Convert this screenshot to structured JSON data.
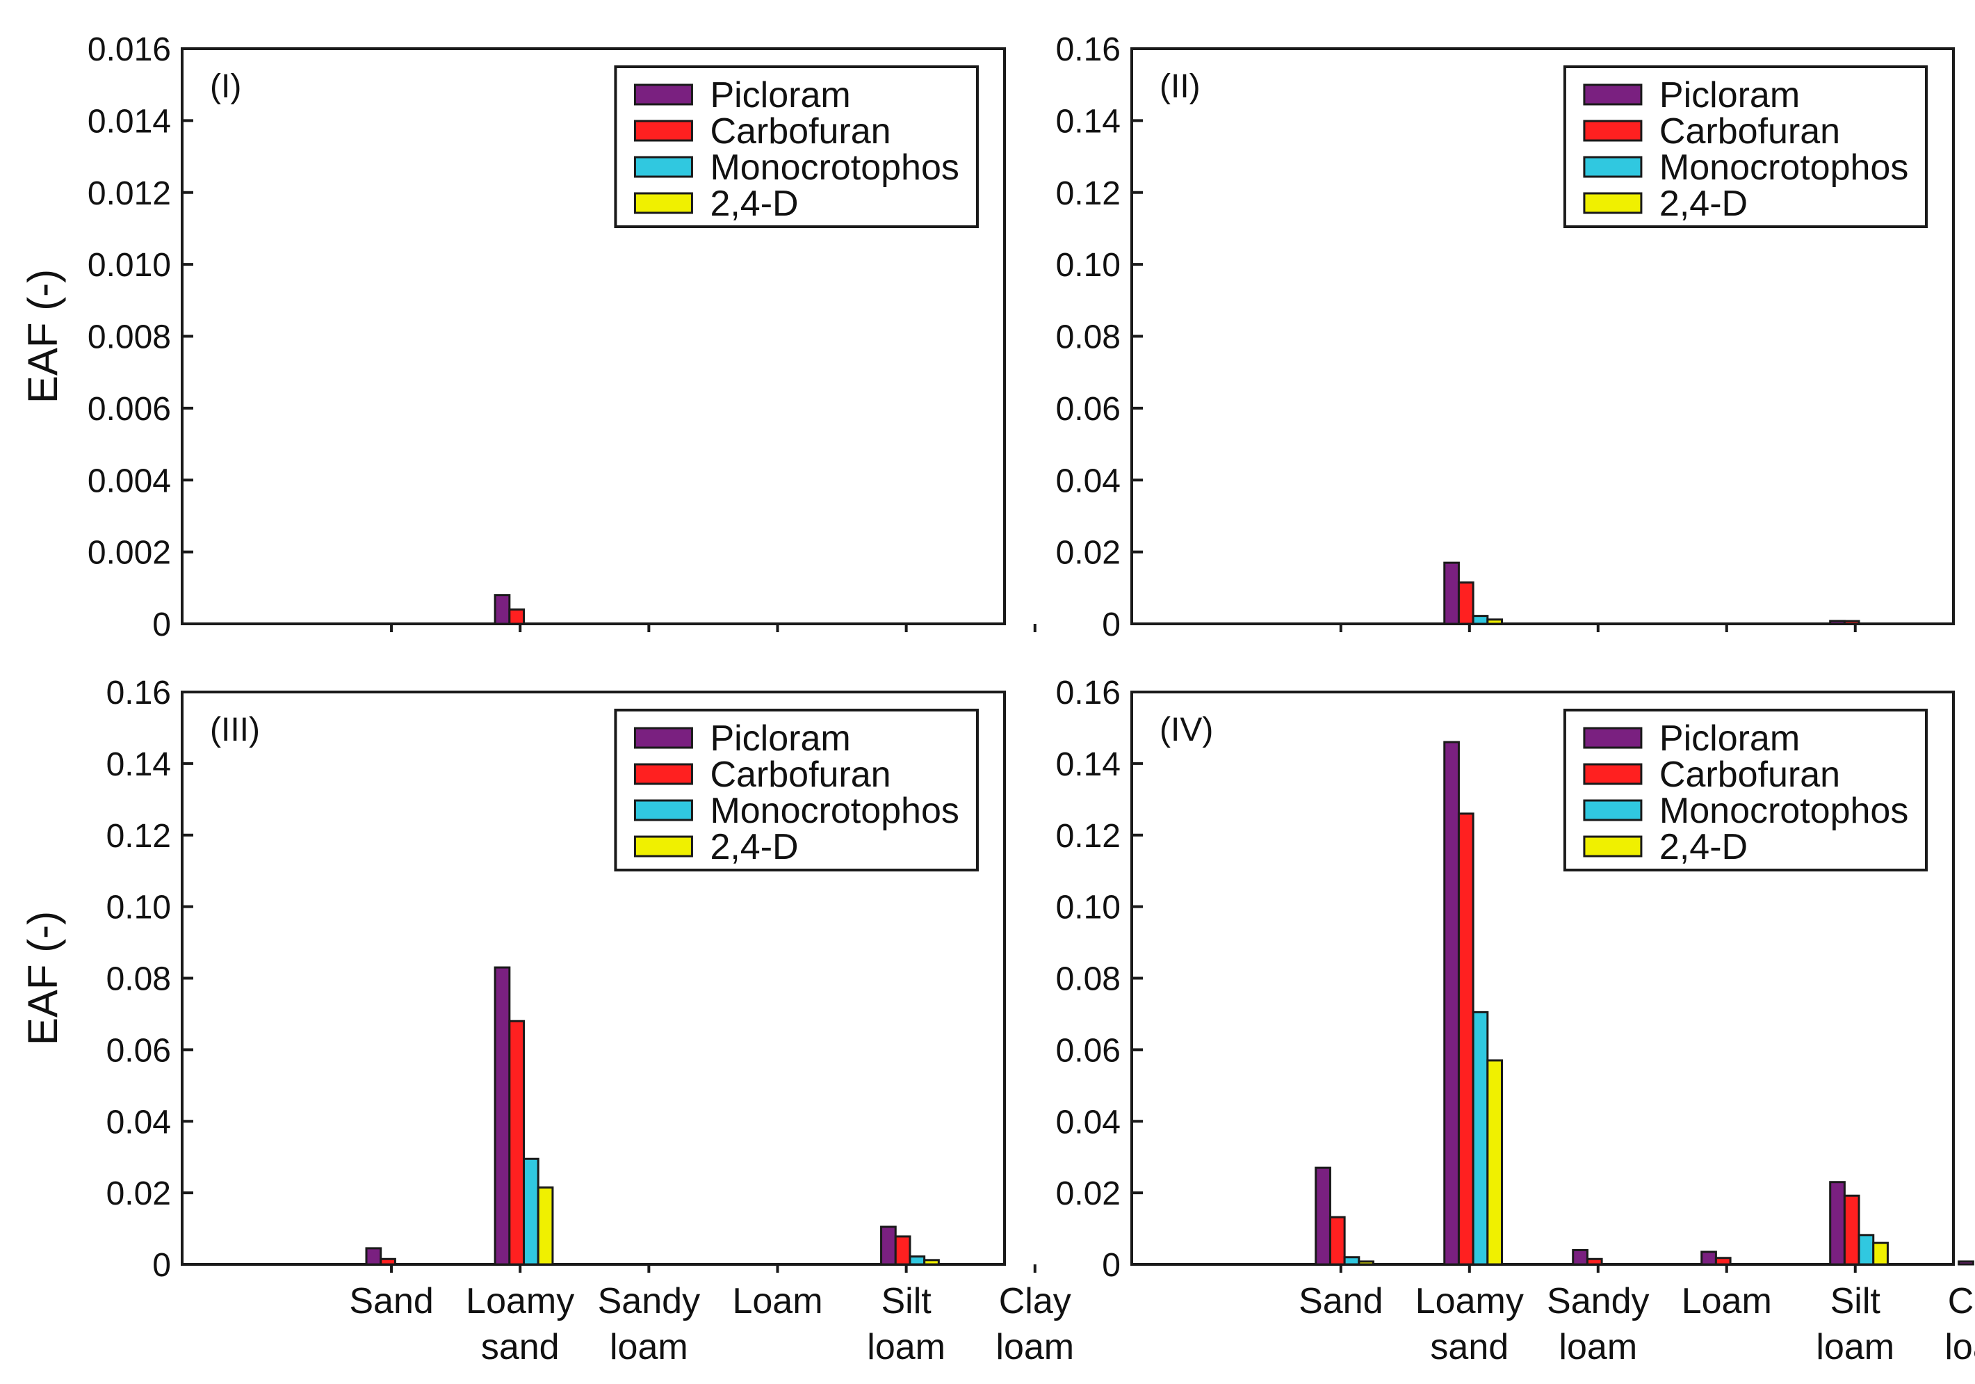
{
  "chart_data": [
    {
      "type": "bar",
      "panel_label": "(I)",
      "ylabel": "EAF (-)",
      "ylim": [
        0,
        0.016
      ],
      "yticks": [
        "0",
        "0.002",
        "0.004",
        "0.006",
        "0.008",
        "0.010",
        "0.012",
        "0.014",
        "0.016"
      ],
      "categories": [
        "Sand",
        "Loamy sand",
        "Sandy loam",
        "Loam",
        "Silt loam",
        "Clay loam"
      ],
      "show_category_labels": false,
      "legend_position": "top-right",
      "series": [
        {
          "name": "Picloram",
          "values": [
            0,
            0.0008,
            0,
            0,
            0,
            0
          ]
        },
        {
          "name": "Carbofuran",
          "values": [
            0,
            0.0004,
            0,
            0,
            0,
            0
          ]
        },
        {
          "name": "Monocrotophos",
          "values": [
            0,
            0,
            0,
            0,
            0,
            0
          ]
        },
        {
          "name": "2,4-D",
          "values": [
            0,
            0,
            0,
            0,
            0,
            0
          ]
        }
      ]
    },
    {
      "type": "bar",
      "panel_label": "(II)",
      "ylabel": "",
      "ylim": [
        0,
        0.16
      ],
      "yticks": [
        "0",
        "0.02",
        "0.04",
        "0.06",
        "0.08",
        "0.10",
        "0.12",
        "0.14",
        "0.16"
      ],
      "categories": [
        "Sand",
        "Loamy sand",
        "Sandy loam",
        "Loam",
        "Silt loam",
        "Clay loam"
      ],
      "show_category_labels": false,
      "legend_position": "top-right",
      "series": [
        {
          "name": "Picloram",
          "values": [
            0,
            0.017,
            0,
            0,
            0.0008,
            0
          ]
        },
        {
          "name": "Carbofuran",
          "values": [
            0,
            0.0115,
            0,
            0,
            0.0004,
            0
          ]
        },
        {
          "name": "Monocrotophos",
          "values": [
            0,
            0.0022,
            0,
            0,
            0,
            0
          ]
        },
        {
          "name": "2,4-D",
          "values": [
            0,
            0.0012,
            0,
            0,
            0,
            0
          ]
        }
      ]
    },
    {
      "type": "bar",
      "panel_label": "(III)",
      "ylabel": "EAF (-)",
      "ylim": [
        0,
        0.16
      ],
      "yticks": [
        "0",
        "0.02",
        "0.04",
        "0.06",
        "0.08",
        "0.10",
        "0.12",
        "0.14",
        "0.16"
      ],
      "categories": [
        "Sand",
        "Loamy sand",
        "Sandy loam",
        "Loam",
        "Silt loam",
        "Clay loam"
      ],
      "show_category_labels": true,
      "legend_position": "top-right",
      "series": [
        {
          "name": "Picloram",
          "values": [
            0.0045,
            0.083,
            0,
            0,
            0.0105,
            0
          ]
        },
        {
          "name": "Carbofuran",
          "values": [
            0.0015,
            0.068,
            0,
            0,
            0.0078,
            0
          ]
        },
        {
          "name": "Monocrotophos",
          "values": [
            0,
            0.0295,
            0,
            0,
            0.0022,
            0
          ]
        },
        {
          "name": "2,4-D",
          "values": [
            0,
            0.0215,
            0,
            0,
            0.0012,
            0
          ]
        }
      ]
    },
    {
      "type": "bar",
      "panel_label": "(IV)",
      "ylabel": "",
      "ylim": [
        0,
        0.16
      ],
      "yticks": [
        "0",
        "0.02",
        "0.04",
        "0.06",
        "0.08",
        "0.10",
        "0.12",
        "0.14",
        "0.16"
      ],
      "categories": [
        "Sand",
        "Loamy sand",
        "Sandy loam",
        "Loam",
        "Silt loam",
        "Clay loam"
      ],
      "show_category_labels": true,
      "legend_position": "top-right",
      "series": [
        {
          "name": "Picloram",
          "values": [
            0.027,
            0.146,
            0.004,
            0.0035,
            0.023,
            0.0008
          ]
        },
        {
          "name": "Carbofuran",
          "values": [
            0.0132,
            0.126,
            0.0015,
            0.0018,
            0.0192,
            0
          ]
        },
        {
          "name": "Monocrotophos",
          "values": [
            0.002,
            0.0705,
            0,
            0,
            0.0082,
            0
          ]
        },
        {
          "name": "2,4-D",
          "values": [
            0.0008,
            0.057,
            0,
            0,
            0.006,
            0
          ]
        }
      ]
    }
  ],
  "colors": {
    "Picloram": "#7a2080",
    "Carbofuran": "#ff2020",
    "Monocrotophos": "#30c8e0",
    "2,4-D": "#f0f000"
  }
}
